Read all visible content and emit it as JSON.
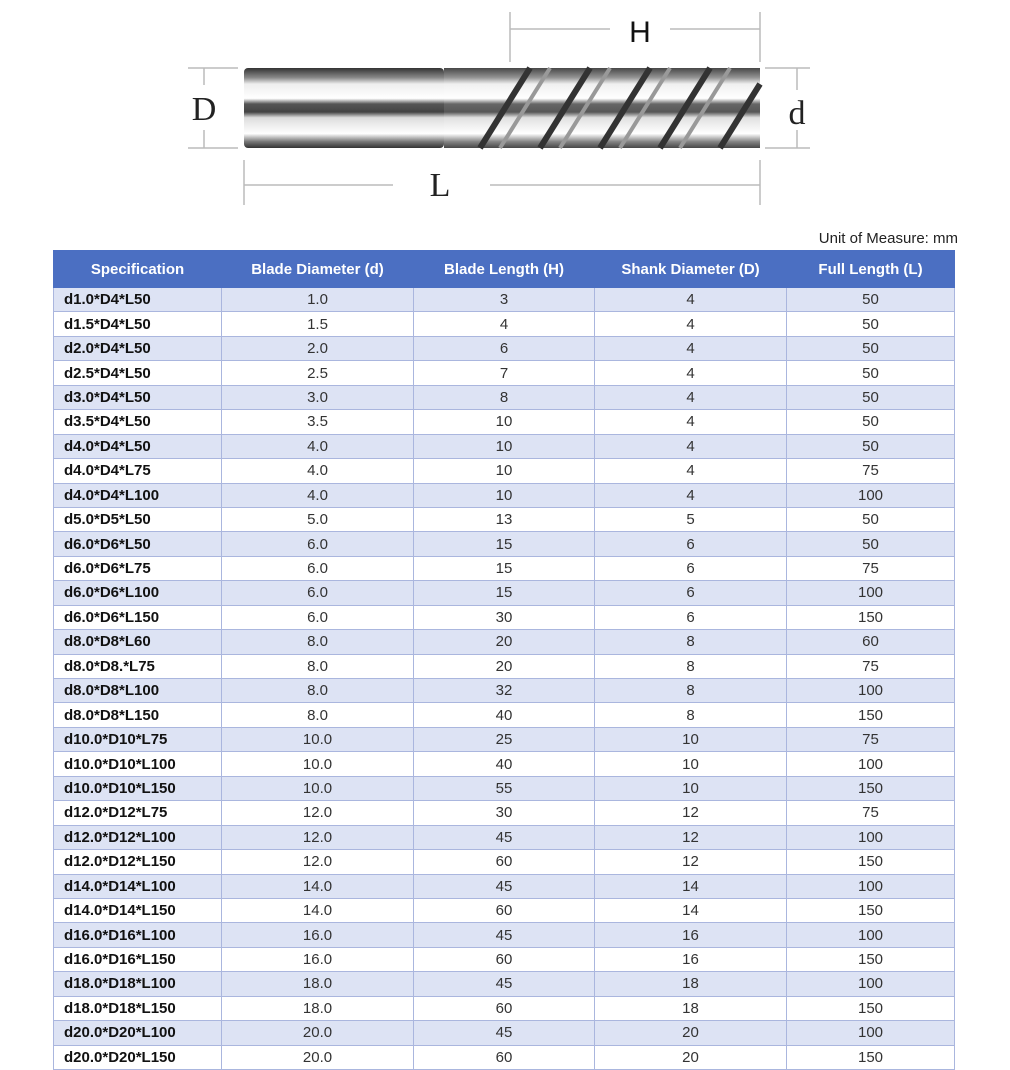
{
  "drawing": {
    "labels": {
      "H": "H",
      "D": "D",
      "d": "d",
      "L": "L"
    }
  },
  "unit_label": "Unit of Measure: mm",
  "table": {
    "headers": [
      "Specification",
      "Blade Diameter (d)",
      "Blade Length (H)",
      "Shank Diameter (D)",
      "Full Length (L)"
    ],
    "rows": [
      [
        "d1.0*D4*L50",
        "1.0",
        "3",
        "4",
        "50"
      ],
      [
        "d1.5*D4*L50",
        "1.5",
        "4",
        "4",
        "50"
      ],
      [
        "d2.0*D4*L50",
        "2.0",
        "6",
        "4",
        "50"
      ],
      [
        "d2.5*D4*L50",
        "2.5",
        "7",
        "4",
        "50"
      ],
      [
        "d3.0*D4*L50",
        "3.0",
        "8",
        "4",
        "50"
      ],
      [
        "d3.5*D4*L50",
        "3.5",
        "10",
        "4",
        "50"
      ],
      [
        "d4.0*D4*L50",
        "4.0",
        "10",
        "4",
        "50"
      ],
      [
        "d4.0*D4*L75",
        "4.0",
        "10",
        "4",
        "75"
      ],
      [
        "d4.0*D4*L100",
        "4.0",
        "10",
        "4",
        "100"
      ],
      [
        "d5.0*D5*L50",
        "5.0",
        "13",
        "5",
        "50"
      ],
      [
        "d6.0*D6*L50",
        "6.0",
        "15",
        "6",
        "50"
      ],
      [
        "d6.0*D6*L75",
        "6.0",
        "15",
        "6",
        "75"
      ],
      [
        "d6.0*D6*L100",
        "6.0",
        "15",
        "6",
        "100"
      ],
      [
        "d6.0*D6*L150",
        "6.0",
        "30",
        "6",
        "150"
      ],
      [
        "d8.0*D8*L60",
        "8.0",
        "20",
        "8",
        "60"
      ],
      [
        "d8.0*D8.*L75",
        "8.0",
        "20",
        "8",
        "75"
      ],
      [
        "d8.0*D8*L100",
        "8.0",
        "32",
        "8",
        "100"
      ],
      [
        "d8.0*D8*L150",
        "8.0",
        "40",
        "8",
        "150"
      ],
      [
        "d10.0*D10*L75",
        "10.0",
        "25",
        "10",
        "75"
      ],
      [
        "d10.0*D10*L100",
        "10.0",
        "40",
        "10",
        "100"
      ],
      [
        "d10.0*D10*L150",
        "10.0",
        "55",
        "10",
        "150"
      ],
      [
        "d12.0*D12*L75",
        "12.0",
        "30",
        "12",
        "75"
      ],
      [
        "d12.0*D12*L100",
        "12.0",
        "45",
        "12",
        "100"
      ],
      [
        "d12.0*D12*L150",
        "12.0",
        "60",
        "12",
        "150"
      ],
      [
        "d14.0*D14*L100",
        "14.0",
        "45",
        "14",
        "100"
      ],
      [
        "d14.0*D14*L150",
        "14.0",
        "60",
        "14",
        "150"
      ],
      [
        "d16.0*D16*L100",
        "16.0",
        "45",
        "16",
        "100"
      ],
      [
        "d16.0*D16*L150",
        "16.0",
        "60",
        "16",
        "150"
      ],
      [
        "d18.0*D18*L100",
        "18.0",
        "45",
        "18",
        "100"
      ],
      [
        "d18.0*D18*L150",
        "18.0",
        "60",
        "18",
        "150"
      ],
      [
        "d20.0*D20*L100",
        "20.0",
        "45",
        "20",
        "100"
      ],
      [
        "d20.0*D20*L150",
        "20.0",
        "60",
        "20",
        "150"
      ]
    ]
  },
  "colors": {
    "header_bg": "#4b6fc2",
    "row_alt": "#dde3f4",
    "border": "#aab6de"
  }
}
